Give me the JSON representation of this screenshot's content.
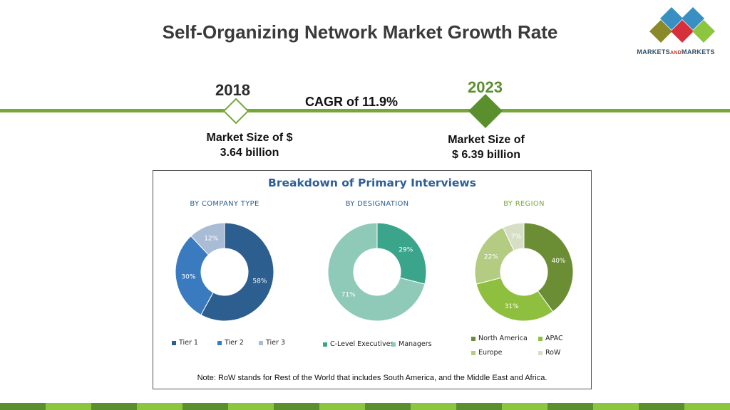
{
  "title": "Self-Organizing Network Market Growth Rate",
  "logo": {
    "text_main": "MARKETS",
    "text_small": "AND",
    "text_end": "MARKETS"
  },
  "timeline": {
    "start": {
      "year": "2018",
      "size_line1": "Market Size of $",
      "size_line2": "3.64 billion"
    },
    "end": {
      "year": "2023",
      "size_line1": "Market Size of",
      "size_line2": "$ 6.39 billion"
    },
    "cagr": "CAGR of 11.9%"
  },
  "breakdown": {
    "title": "Breakdown of Primary Interviews",
    "note": "Note: RoW stands for Rest of the World that includes South America, and the Middle East and Africa."
  },
  "colors": {
    "green_line": "#76a838",
    "dark_green": "#5b8f2e",
    "blue_title": "#2d5f96"
  },
  "chart_data": [
    {
      "type": "pie",
      "title": "BY COMPANY TYPE",
      "categories": [
        "Tier 1",
        "Tier 2",
        "Tier 3"
      ],
      "values": [
        58,
        30,
        12
      ],
      "labels": [
        "58%",
        "30%",
        "12%"
      ],
      "colors": [
        "#2c5e8f",
        "#3a7bbf",
        "#a9bcd6"
      ],
      "label_colors": [
        "#ffffff",
        "#ffffff",
        "#ffffff"
      ],
      "legend": "bottom"
    },
    {
      "type": "pie",
      "title": "BY DESIGNATION",
      "categories": [
        "C-Level Executives",
        "Managers"
      ],
      "values": [
        29,
        71
      ],
      "labels": [
        "29%",
        "71%"
      ],
      "colors": [
        "#3aa58a",
        "#8fcab8"
      ],
      "label_colors": [
        "#ffffff",
        "#ffffff"
      ],
      "legend": "bottom"
    },
    {
      "type": "pie",
      "title": "BY REGION",
      "categories": [
        "North America",
        "APAC",
        "Europe",
        "RoW"
      ],
      "values": [
        40,
        31,
        22,
        7
      ],
      "labels": [
        "40%",
        "31%",
        "22%",
        "7%"
      ],
      "colors": [
        "#6b8e35",
        "#8fbf3f",
        "#b3cc82",
        "#d7dec6"
      ],
      "label_colors": [
        "#ffffff",
        "#ffffff",
        "#ffffff",
        "#ffffff"
      ],
      "legend": "bottom"
    }
  ]
}
